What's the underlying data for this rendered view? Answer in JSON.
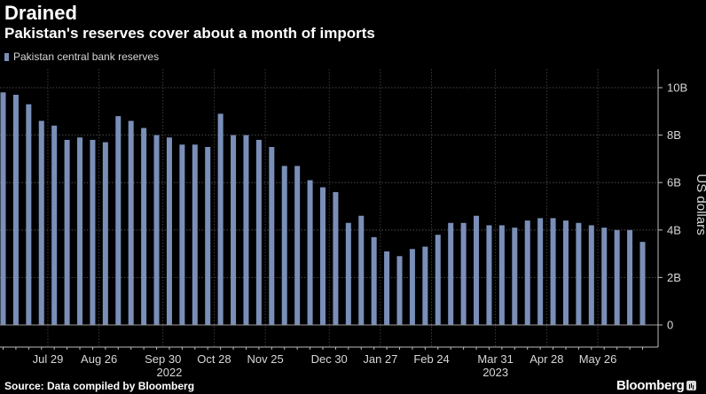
{
  "header": {
    "title": "Drained",
    "subtitle": "Pakistan's reserves cover about a month of imports"
  },
  "legend": {
    "label": "Pakistan central bank reserves",
    "color": "#7a8fb8"
  },
  "footer": {
    "source": "Source: Data compiled by Bloomberg",
    "brand": "Bloomberg",
    "brand_icon": "bloomberg-chart-icon"
  },
  "chart_data": {
    "type": "bar",
    "title": "Drained",
    "subtitle": "Pakistan's reserves cover about a month of imports",
    "series": [
      {
        "name": "Pakistan central bank reserves",
        "color": "#7a8fb8",
        "values": [
          9.8,
          9.7,
          9.3,
          8.6,
          8.4,
          7.8,
          7.9,
          7.8,
          7.7,
          8.8,
          8.6,
          8.3,
          8.0,
          7.9,
          7.6,
          7.6,
          7.5,
          8.9,
          8.0,
          8.0,
          7.8,
          7.5,
          6.7,
          6.7,
          6.1,
          5.8,
          5.6,
          4.3,
          4.6,
          3.7,
          3.1,
          2.9,
          3.2,
          3.3,
          3.8,
          4.3,
          4.3,
          4.6,
          4.2,
          4.2,
          4.1,
          4.4,
          4.5,
          4.5,
          4.4,
          4.3,
          4.2,
          4.1,
          4.0,
          4.0,
          3.5
        ]
      }
    ],
    "x_ticks": [
      {
        "index": 3.5,
        "label": "Jul 29"
      },
      {
        "index": 7.5,
        "label": "Aug 26"
      },
      {
        "index": 12.5,
        "label": "Sep 30"
      },
      {
        "index": 16.5,
        "label": "Oct 28"
      },
      {
        "index": 20.5,
        "label": "Nov 25"
      },
      {
        "index": 25.5,
        "label": "Dec 30"
      },
      {
        "index": 29.5,
        "label": "Jan 27"
      },
      {
        "index": 33.5,
        "label": "Feb 24"
      },
      {
        "index": 38.5,
        "label": "Mar 31"
      },
      {
        "index": 42.5,
        "label": "Apr 28"
      },
      {
        "index": 46.5,
        "label": "May 26"
      }
    ],
    "year_labels": [
      {
        "index": 13,
        "label": "2022"
      },
      {
        "index": 38.5,
        "label": "2023"
      }
    ],
    "y_ticks": [
      {
        "value": 0,
        "label": "0"
      },
      {
        "value": 2,
        "label": "2B"
      },
      {
        "value": 4,
        "label": "4B"
      },
      {
        "value": 6,
        "label": "6B"
      },
      {
        "value": 8,
        "label": "8B"
      },
      {
        "value": 10,
        "label": "10B"
      }
    ],
    "ylabel": "US dollars",
    "ylim": [
      0,
      10.8
    ],
    "grid": true,
    "y_axis_position": "right",
    "legend_position": "top-left"
  }
}
